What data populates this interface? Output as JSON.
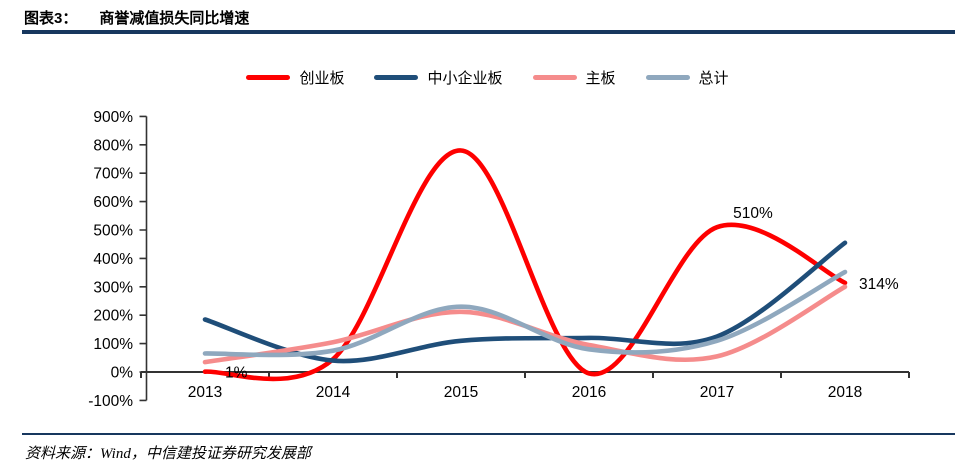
{
  "header": {
    "figure_label": "图表3：",
    "title": "商誉减值损失同比增速"
  },
  "footer": {
    "source": "资料来源：Wind，中信建投证券研究发展部"
  },
  "colors": {
    "accent_rule": "#17375E",
    "axis": "#333333"
  },
  "chart_data": {
    "type": "line",
    "title": "商誉减值损失同比增速",
    "categories": [
      "2013",
      "2014",
      "2015",
      "2016",
      "2017",
      "2018"
    ],
    "xlabel": "",
    "ylabel": "",
    "ylim": [
      -100,
      900
    ],
    "ytick_step": 100,
    "ytick_suffix": "%",
    "grid": false,
    "smooth": true,
    "legend_position": "top",
    "series": [
      {
        "name": "创业板",
        "color": "#FE0000",
        "values": [
          1,
          45,
          780,
          -5,
          510,
          314
        ]
      },
      {
        "name": "中小企业板",
        "color": "#1F4E79",
        "values": [
          185,
          40,
          110,
          120,
          125,
          455
        ]
      },
      {
        "name": "主板",
        "color": "#F58C8C",
        "values": [
          35,
          105,
          212,
          95,
          55,
          300
        ]
      },
      {
        "name": "总计",
        "color": "#8FA8BE",
        "values": [
          65,
          75,
          230,
          80,
          110,
          352
        ]
      }
    ],
    "annotations": [
      {
        "text": "1%",
        "series": "创业板",
        "year": "2013",
        "value": 1
      },
      {
        "text": "510%",
        "series": "创业板",
        "year": "2017",
        "value": 510
      },
      {
        "text": "314%",
        "series": "创业板",
        "year": "2018",
        "value": 314
      }
    ]
  }
}
